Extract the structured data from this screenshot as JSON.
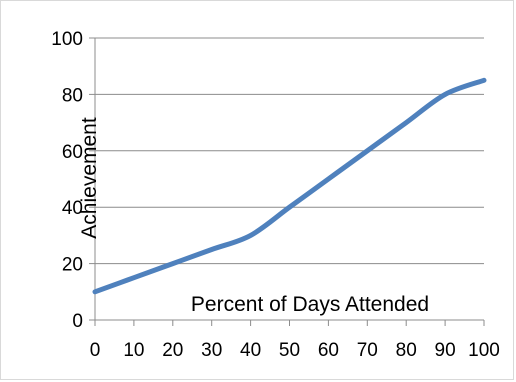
{
  "chart_data": {
    "type": "line",
    "xlabel": "Percent of Days Attended",
    "ylabel": "Achievement",
    "x": [
      0,
      10,
      20,
      30,
      40,
      50,
      60,
      70,
      80,
      90,
      100
    ],
    "series": [
      {
        "values": [
          10,
          15,
          20,
          25,
          30,
          40,
          50,
          60,
          70,
          80,
          85
        ]
      }
    ],
    "xlim": [
      0,
      100
    ],
    "ylim": [
      0,
      100
    ],
    "xticks": [
      "0",
      "10",
      "20",
      "30",
      "40",
      "50",
      "60",
      "70",
      "80",
      "90",
      "100"
    ],
    "yticks": [
      "0",
      "20",
      "40",
      "60",
      "80",
      "100"
    ],
    "grid": "horizontal",
    "line_color": "#4f81bd",
    "grid_color": "#8c8c8c"
  }
}
